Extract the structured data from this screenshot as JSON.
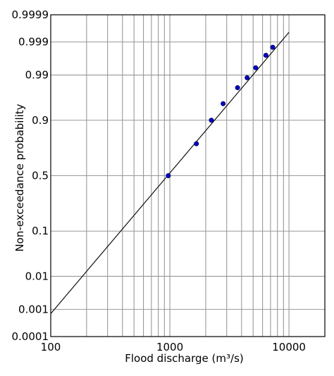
{
  "chart_data": {
    "type": "scatter",
    "xscale": "log",
    "yscale": "probability",
    "xlim": [
      100,
      20000
    ],
    "ylim": [
      0.0001,
      0.9999
    ],
    "grid": true,
    "xlabel": "Flood discharge (m³/s)",
    "ylabel": "Non-exceedance probability",
    "x_tick_labels": [
      "100",
      "1000",
      "10000"
    ],
    "x_ticks": [
      100,
      1000,
      10000
    ],
    "y_tick_labels": [
      "0.0001",
      "0.001",
      "0.01",
      "0.1",
      "0.5",
      "0.9",
      "0.99",
      "0.999",
      "0.9999"
    ],
    "y_ticks": [
      0.0001,
      0.001,
      0.01,
      0.1,
      0.5,
      0.9,
      0.99,
      0.999,
      0.9999
    ],
    "series": [
      {
        "values": [
          {
            "x": 970,
            "y": 0.5
          },
          {
            "x": 1670,
            "y": 0.77
          },
          {
            "x": 2230,
            "y": 0.9
          },
          {
            "x": 2800,
            "y": 0.952
          },
          {
            "x": 3700,
            "y": 0.979
          },
          {
            "x": 4450,
            "y": 0.9882
          },
          {
            "x": 5250,
            "y": 0.9937
          },
          {
            "x": 6400,
            "y": 0.9973
          },
          {
            "x": 7300,
            "y": 0.9985
          }
        ],
        "color": "#0000cc"
      }
    ],
    "fit_line": {
      "x": [
        100,
        10000
      ],
      "y": [
        0.00071,
        0.99954
      ],
      "color": "#000000"
    },
    "colors": {
      "grid": "#999999",
      "frame": "#000000",
      "points": "#0000cc"
    }
  }
}
